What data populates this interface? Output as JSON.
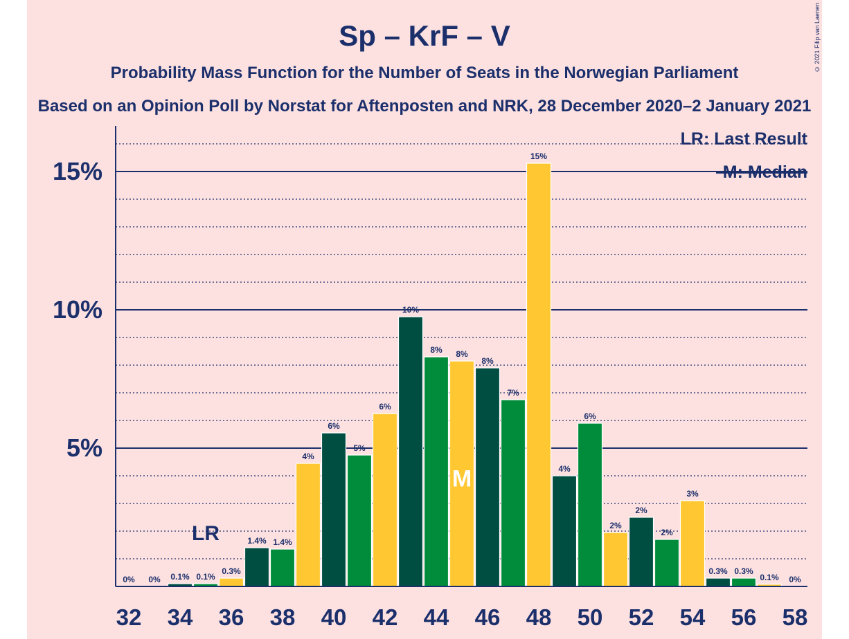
{
  "chart_data": {
    "type": "bar",
    "title": "Sp – KrF – V",
    "subtitle": "Probability Mass Function for the Number of Seats in the Norwegian Parliament",
    "subtitle2": "Based on an Opinion Poll by Norstat for Aftenposten and NRK, 28 December 2020–2 January 2021",
    "copyright": "© 2021 Filip van Laenen",
    "legend": [
      "LR: Last Result",
      "M: Median"
    ],
    "xlabel": "",
    "ylabel": "",
    "ylim": [
      0,
      16.5
    ],
    "y_ticks": [
      5,
      10,
      15
    ],
    "y_tick_labels": [
      "5%",
      "10%",
      "15%"
    ],
    "x_tick_labels": [
      "32",
      "34",
      "36",
      "38",
      "40",
      "42",
      "44",
      "46",
      "48",
      "50",
      "52",
      "54",
      "56",
      "58"
    ],
    "seats": [
      32,
      33,
      34,
      35,
      36,
      37,
      38,
      39,
      40,
      41,
      42,
      43,
      44,
      45,
      46,
      47,
      48,
      49,
      50,
      51,
      52,
      53,
      54,
      55,
      56,
      57,
      58
    ],
    "values": [
      0,
      0,
      0.1,
      0.1,
      0.3,
      1.4,
      1.35,
      4.45,
      5.55,
      4.75,
      6.25,
      9.75,
      8.3,
      8.15,
      7.9,
      6.75,
      15.3,
      4.0,
      5.9,
      1.95,
      2.5,
      1.7,
      3.1,
      0.3,
      0.3,
      0.08,
      0
    ],
    "labels": [
      "0%",
      "0%",
      "0.1%",
      "0.1%",
      "0.3%",
      "1.4%",
      "1.4%",
      "4%",
      "6%",
      "5%",
      "6%",
      "10%",
      "8%",
      "8%",
      "8%",
      "7%",
      "15%",
      "4%",
      "6%",
      "2%",
      "2%",
      "2%",
      "3%",
      "0.3%",
      "0.3%",
      "0.1%",
      "0%"
    ],
    "last_result_seat": 35,
    "last_result_label": "LR",
    "median_seat": 45,
    "median_label": "M",
    "colors": {
      "green": "#008c3a",
      "yellow": "#ffc832",
      "dark": "#004d42",
      "navy": "#1b2f6b",
      "background": "#fde1e1"
    }
  }
}
